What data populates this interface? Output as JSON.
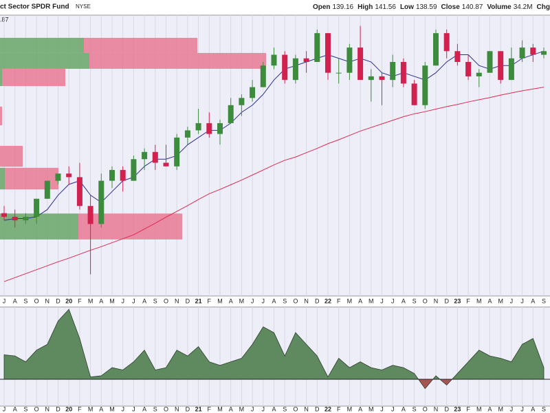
{
  "header": {
    "title": "ct Sector SPDR Fund",
    "exchange": "NYSE",
    "quote": [
      {
        "label": "Open",
        "value": 139.16
      },
      {
        "label": "High",
        "value": 141.56
      },
      {
        "label": "Low",
        "value": 138.59
      },
      {
        "label": "Close",
        "value": 140.87
      },
      {
        "label": "Volume",
        "value": "34.2M"
      },
      {
        "label": "Chg"
      }
    ],
    "overlay_label": ".87"
  },
  "chart_data": [
    {
      "type": "candlestick",
      "ylim": [
        68,
        146
      ],
      "grid": true,
      "categories": [
        "J",
        "A",
        "S",
        "O",
        "N",
        "D",
        "20",
        "F",
        "M",
        "A",
        "M",
        "J",
        "J",
        "A",
        "S",
        "O",
        "N",
        "D",
        "21",
        "F",
        "M",
        "A",
        "M",
        "J",
        "J",
        "A",
        "S",
        "O",
        "N",
        "D",
        "22",
        "F",
        "M",
        "A",
        "M",
        "J",
        "J",
        "A",
        "S",
        "O",
        "N",
        "D",
        "23",
        "F",
        "M",
        "A",
        "M",
        "J",
        "J",
        "A",
        "S"
      ],
      "open": [
        91,
        90,
        89,
        90,
        95,
        100,
        102,
        101,
        93,
        88,
        100,
        103,
        100,
        106,
        108,
        105,
        104,
        112,
        114,
        116,
        113,
        116,
        121,
        123,
        126,
        132,
        135,
        128,
        134,
        133,
        141,
        130,
        130,
        137,
        128,
        129,
        128,
        133,
        127,
        121,
        132,
        141,
        136,
        133,
        129,
        130,
        136,
        128,
        134,
        137,
        135
      ],
      "high": [
        93,
        92,
        91,
        95,
        100,
        102,
        104,
        105,
        96,
        102,
        104,
        104,
        107,
        109,
        110,
        110,
        113,
        115,
        120,
        119,
        117,
        123,
        124,
        128,
        133,
        137,
        136,
        135,
        136,
        142,
        141,
        134,
        138,
        143,
        131,
        130,
        135,
        134,
        128,
        133,
        142,
        142,
        138,
        135,
        131,
        136,
        136,
        137,
        139,
        138,
        137
      ],
      "low": [
        89,
        87,
        88,
        88,
        95,
        99,
        99,
        92,
        74,
        87,
        98,
        97,
        100,
        103,
        103,
        104,
        103,
        110,
        113,
        112,
        110,
        116,
        118,
        122,
        126,
        131,
        127,
        127,
        130,
        133,
        128,
        127,
        128,
        128,
        122,
        121,
        126,
        126,
        121,
        120,
        132,
        134,
        132,
        128,
        126,
        130,
        127,
        128,
        133,
        133,
        134
      ],
      "close": [
        90,
        89,
        90,
        95,
        100,
        102,
        101,
        93,
        88,
        100,
        103,
        100,
        106,
        108,
        105,
        104,
        112,
        114,
        116,
        113,
        116,
        121,
        123,
        126,
        132,
        135,
        128,
        134,
        133,
        141,
        130,
        130,
        137,
        128,
        129,
        128,
        133,
        127,
        121,
        132,
        141,
        136,
        133,
        129,
        130,
        136,
        128,
        134,
        137,
        135,
        136
      ],
      "up_color": "#3d8b3d",
      "down_color": "#d1224f",
      "moving_averages": [
        {
          "color": "#2b2f8f",
          "values": [
            89,
            89.5,
            89.5,
            90,
            92,
            96,
            99,
            100,
            96,
            94,
            97,
            100,
            101,
            104,
            106,
            106,
            107,
            110,
            112,
            114,
            114,
            116,
            119,
            121,
            124,
            128,
            131,
            132,
            133,
            134,
            135,
            134,
            133,
            134,
            133,
            130,
            129,
            130,
            129,
            128,
            130,
            133,
            135,
            135,
            132,
            131,
            132,
            132,
            134,
            135,
            136
          ]
        },
        {
          "color": "#e0294f",
          "values": [
            72,
            73.1,
            74.2,
            75.3,
            76.4,
            77.5,
            78.5,
            79.6,
            80.7,
            81.7,
            82.8,
            83.9,
            85,
            86.6,
            88.2,
            89.9,
            91.5,
            93.1,
            94.8,
            96.4,
            97.6,
            98.9,
            100.2,
            101.6,
            103,
            104.4,
            105.7,
            106.6,
            107.8,
            109,
            110.3,
            111.4,
            112.6,
            113.8,
            114.8,
            115.8,
            116.8,
            117.8,
            118.6,
            119.2,
            119.9,
            120.6,
            121.2,
            121.9,
            122.5,
            123.1,
            123.8,
            124.4,
            125,
            125.5,
            126
          ]
        }
      ],
      "volume_by_price": {
        "xlim": [
          0,
          800
        ],
        "up_color": "#6fa86f",
        "down_color": "#e87f98",
        "price_ranges": [
          [
            135.5,
            139.7
          ],
          [
            131.1,
            135.5
          ],
          [
            126.3,
            131.1
          ],
          [
            115.4,
            120.6
          ],
          [
            103.9,
            109.7
          ],
          [
            97.6,
            103.6
          ],
          [
            83.7,
            90.9
          ]
        ],
        "up": [
          122,
          130,
          3,
          0,
          0,
          7,
          114
        ],
        "down": [
          165,
          257,
          92,
          3,
          33,
          78,
          151
        ]
      }
    },
    {
      "type": "area",
      "ylim": [
        -23,
        62
      ],
      "pos_color": "#5f8a5f",
      "neg_color": "#a65454",
      "values": [
        21,
        20,
        15,
        25,
        30,
        50,
        60,
        35,
        2,
        3,
        10,
        8,
        15,
        25,
        8,
        10,
        25,
        20,
        28,
        15,
        12,
        15,
        18,
        30,
        45,
        40,
        20,
        40,
        30,
        20,
        2,
        18,
        10,
        15,
        10,
        8,
        12,
        10,
        5,
        -8,
        3,
        -5,
        5,
        15,
        25,
        20,
        18,
        15,
        30,
        35,
        10
      ]
    }
  ]
}
